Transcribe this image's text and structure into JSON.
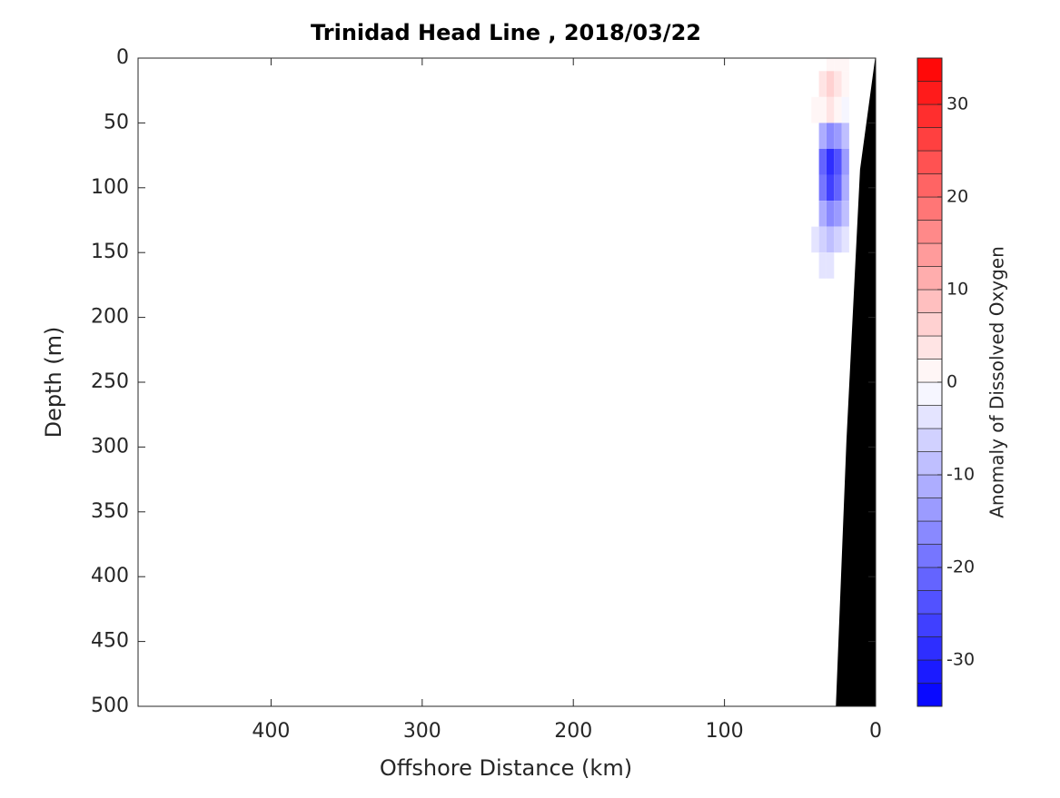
{
  "chart_data": {
    "type": "contour",
    "title": "Trinidad Head Line , 2018/03/22",
    "xlabel": "Offshore Distance (km)",
    "ylabel": "Depth (m)",
    "colorbar_label": "Anomaly of Dissolved Oxygen",
    "xlim": [
      488,
      0
    ],
    "xticks": [
      400,
      300,
      200,
      100,
      0
    ],
    "ylim": [
      0,
      500
    ],
    "yticks": [
      0,
      50,
      100,
      150,
      200,
      250,
      300,
      350,
      400,
      450,
      500
    ],
    "clim": [
      -35,
      35
    ],
    "cticks": [
      -30,
      -20,
      -10,
      0,
      10,
      20,
      30
    ],
    "level_step": 2.5,
    "colormap": [
      "#0000ff",
      "#ffffff",
      "#ff0000"
    ],
    "x": [
      20,
      25,
      30,
      35,
      40
    ],
    "depth": [
      0,
      20,
      40,
      60,
      80,
      100,
      120,
      140,
      160
    ],
    "z": [
      [
        0,
        2,
        1,
        null,
        null
      ],
      [
        2,
        4,
        5,
        4,
        null
      ],
      [
        -2,
        2,
        3,
        2,
        1
      ],
      [
        -8,
        -14,
        -16,
        -12,
        null
      ],
      [
        -14,
        -24,
        -28,
        -22,
        null
      ],
      [
        -12,
        -22,
        -26,
        -20,
        null
      ],
      [
        -8,
        -14,
        -16,
        -12,
        null
      ],
      [
        -4,
        -6,
        -8,
        -6,
        -4
      ],
      [
        null,
        null,
        -4,
        -4,
        null
      ]
    ],
    "bathymetry": {
      "color": "#000000",
      "x": [
        0,
        10,
        19,
        26
      ],
      "depth": [
        0,
        86,
        295,
        500
      ]
    }
  }
}
